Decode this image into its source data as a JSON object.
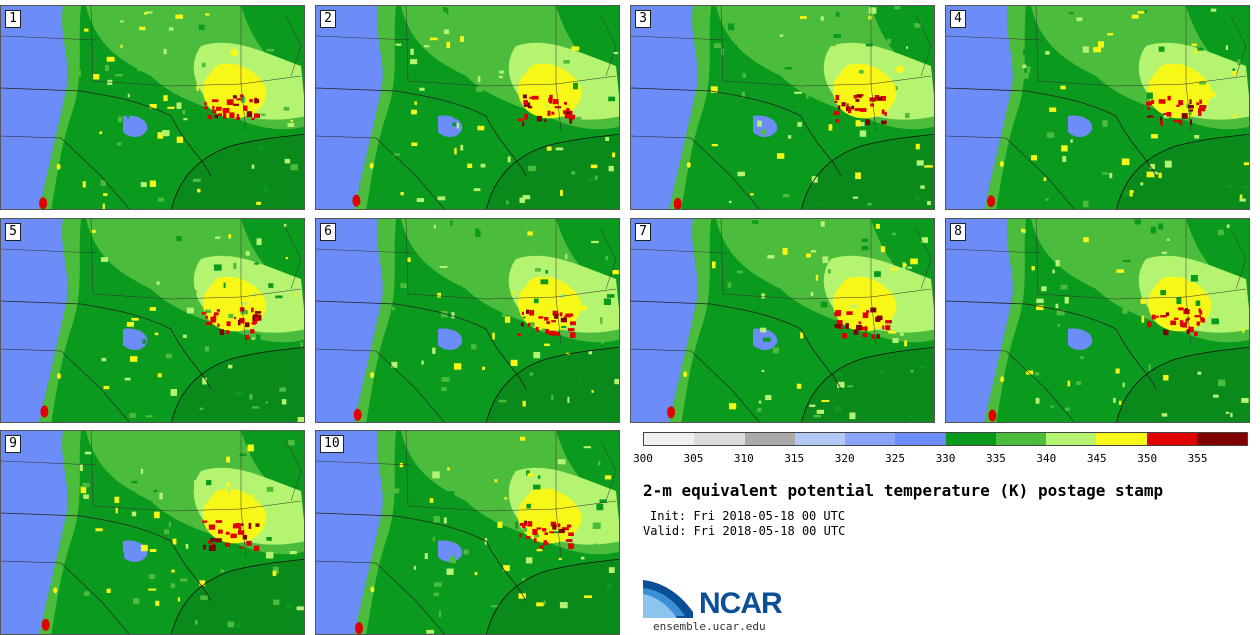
{
  "stamps": [
    {
      "label": "1"
    },
    {
      "label": "2"
    },
    {
      "label": "3"
    },
    {
      "label": "4"
    },
    {
      "label": "5"
    },
    {
      "label": "6"
    },
    {
      "label": "7"
    },
    {
      "label": "8"
    },
    {
      "label": "9"
    },
    {
      "label": "10"
    }
  ],
  "colorbar": {
    "colors": [
      "#f0f0f0",
      "#dcdcdc",
      "#aaaaaa",
      "#b4c8f8",
      "#8aa4f8",
      "#6c8cf8",
      "#0a9a1e",
      "#4cbc3c",
      "#b4f470",
      "#f8f818",
      "#e00000",
      "#800000"
    ],
    "ticks": [
      "300",
      "305",
      "310",
      "315",
      "320",
      "325",
      "330",
      "335",
      "340",
      "345",
      "350",
      "355"
    ]
  },
  "title": "2-m equivalent potential temperature (K) postage stamp",
  "init_text": "Init: Fri 2018-05-18 00 UTC",
  "valid_text": "Valid: Fri 2018-05-18 00 UTC",
  "logo": {
    "text": "NCAR"
  },
  "site": "ensemble.ucar.edu"
}
